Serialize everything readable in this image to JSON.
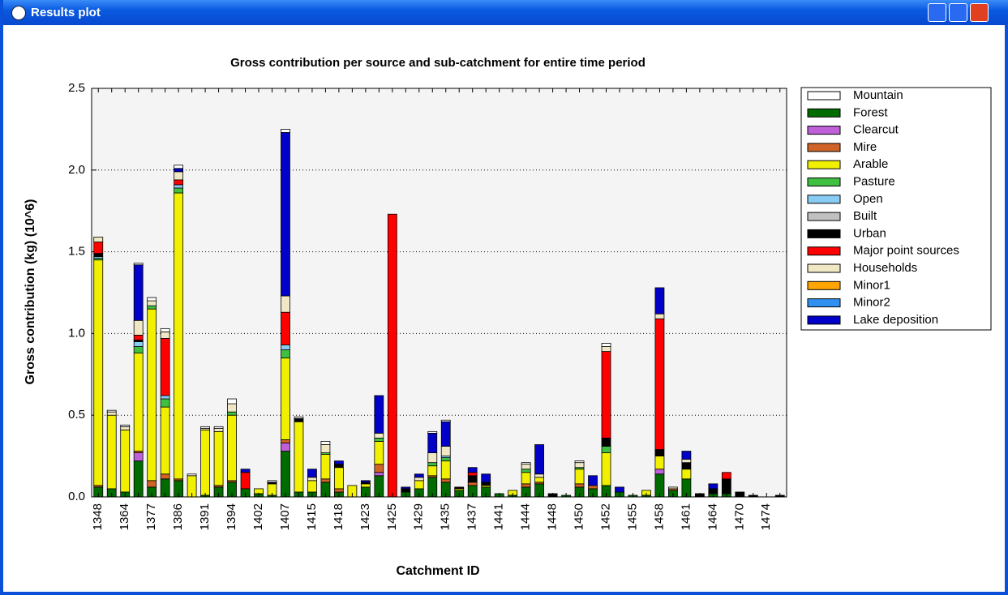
{
  "window": {
    "title": "Results plot"
  },
  "chart_data": {
    "type": "bar",
    "stacked": true,
    "title": "Gross contribution per source and sub-catchment for entire time period",
    "x_label": "Catchment ID",
    "y_label": "Gross contribution (kg) (10^6)",
    "categories": [
      "1348",
      null,
      "1364",
      null,
      "1377",
      null,
      "1386",
      null,
      "1391",
      null,
      "1394",
      null,
      "1402",
      null,
      "1407",
      null,
      "1415",
      null,
      "1418",
      null,
      "1423",
      null,
      "1425",
      null,
      "1429",
      null,
      "1435",
      null,
      "1437",
      null,
      "1441",
      null,
      "1444",
      null,
      "1448",
      null,
      "1450",
      null,
      "1452",
      null,
      "1455",
      null,
      "1458",
      null,
      "1461",
      null,
      "1464",
      null,
      "1470",
      null,
      "1474",
      null
    ],
    "ylim": [
      0,
      2.5
    ],
    "yticks": [
      {
        "value": 0,
        "label": "0.0"
      },
      0.5,
      {
        "value": 1,
        "label": "1.0"
      },
      1.5,
      {
        "value": 2,
        "label": "2.0"
      },
      2.5
    ],
    "grid": true,
    "legend": "right",
    "series": [
      {
        "name": "Mountain",
        "color": "#ffffff",
        "values": [
          0,
          0.01,
          0.01,
          0.01,
          0.02,
          0.02,
          0.02,
          0.01,
          0.01,
          0.01,
          0.03,
          0,
          0,
          0.01,
          0.02,
          0.01,
          0,
          0.02,
          0,
          0,
          0,
          0,
          0,
          0,
          0,
          0.01,
          0.01,
          0,
          0,
          0,
          0,
          0,
          0.01,
          0,
          0,
          0,
          0.01,
          0,
          0.02,
          0,
          0,
          0,
          0,
          0,
          0,
          0,
          0,
          0,
          0,
          0,
          0,
          0
        ]
      },
      {
        "name": "Forest",
        "color": "#006c00",
        "values": [
          0.06,
          0.05,
          0.03,
          0.22,
          0.06,
          0.11,
          0.1,
          0,
          0.01,
          0.06,
          0.09,
          0.05,
          0.02,
          0.01,
          0.28,
          0.03,
          0.03,
          0.09,
          0.03,
          0,
          0.06,
          0.13,
          0,
          0.03,
          0.05,
          0.12,
          0.09,
          0.04,
          0.07,
          0.06,
          0.02,
          0.01,
          0.06,
          0.08,
          0,
          0.01,
          0.06,
          0.05,
          0.07,
          0.03,
          0.01,
          0.01,
          0.14,
          0.04,
          0.11,
          0,
          0.02,
          0.02,
          0,
          0,
          0,
          0
        ]
      },
      {
        "name": "Clearcut",
        "color": "#c060d8",
        "values": [
          0,
          0,
          0,
          0.05,
          0,
          0,
          0,
          0,
          0,
          0,
          0,
          0,
          0,
          0,
          0.05,
          0,
          0,
          0,
          0,
          0,
          0,
          0.02,
          0,
          0,
          0,
          0,
          0,
          0,
          0,
          0,
          0,
          0,
          0,
          0,
          0,
          0,
          0,
          0,
          0,
          0,
          0,
          0,
          0.03,
          0,
          0,
          0,
          0,
          0,
          0,
          0,
          0,
          0
        ]
      },
      {
        "name": "Mire",
        "color": "#d06428",
        "values": [
          0.01,
          0,
          0,
          0.01,
          0.04,
          0.03,
          0.01,
          0,
          0,
          0.01,
          0.01,
          0,
          0,
          0,
          0.02,
          0,
          0,
          0.02,
          0.02,
          0,
          0,
          0.05,
          0,
          0,
          0,
          0.01,
          0.02,
          0,
          0.02,
          0,
          0,
          0,
          0.02,
          0.01,
          0,
          0,
          0.02,
          0.02,
          0,
          0,
          0,
          0,
          0,
          0.01,
          0,
          0,
          0,
          0,
          0,
          0,
          0,
          0
        ]
      },
      {
        "name": "Arable",
        "color": "#f0f000",
        "values": [
          1.38,
          0.45,
          0.38,
          0.6,
          1.05,
          0.41,
          1.75,
          0.13,
          0.4,
          0.33,
          0.4,
          0,
          0.03,
          0.07,
          0.5,
          0.43,
          0.07,
          0.15,
          0.13,
          0.07,
          0.02,
          0.14,
          0,
          0,
          0.05,
          0.06,
          0.11,
          0.01,
          0,
          0.01,
          0,
          0.03,
          0.07,
          0.03,
          0,
          0,
          0.09,
          0,
          0.2,
          0,
          0,
          0.03,
          0.08,
          0,
          0.06,
          0,
          0,
          0,
          0,
          0,
          0,
          0
        ]
      },
      {
        "name": "Pasture",
        "color": "#40c040",
        "values": [
          0.01,
          0,
          0,
          0.04,
          0.02,
          0.05,
          0.03,
          0,
          0,
          0,
          0.02,
          0,
          0,
          0,
          0.05,
          0,
          0,
          0.01,
          0,
          0,
          0,
          0.02,
          0,
          0,
          0,
          0.02,
          0.02,
          0,
          0,
          0,
          0,
          0,
          0.02,
          0,
          0,
          0,
          0.01,
          0,
          0.04,
          0,
          0,
          0,
          0,
          0,
          0,
          0,
          0,
          0,
          0,
          0,
          0,
          0
        ]
      },
      {
        "name": "Open",
        "color": "#88ccf4",
        "values": [
          0.01,
          0,
          0,
          0.03,
          0,
          0.02,
          0.02,
          0,
          0,
          0,
          0,
          0,
          0,
          0,
          0.03,
          0,
          0,
          0,
          0,
          0,
          0,
          0,
          0,
          0,
          0,
          0,
          0.01,
          0,
          0,
          0,
          0,
          0,
          0,
          0,
          0,
          0,
          0,
          0,
          0,
          0,
          0,
          0,
          0,
          0,
          0,
          0,
          0,
          0,
          0,
          0,
          0,
          0
        ]
      },
      {
        "name": "Built",
        "color": "#c0c0c0",
        "values": [
          0,
          0,
          0,
          0,
          0,
          0,
          0,
          0,
          0,
          0,
          0,
          0,
          0,
          0,
          0,
          0,
          0,
          0,
          0,
          0,
          0,
          0,
          0,
          0,
          0,
          0,
          0,
          0,
          0,
          0,
          0,
          0,
          0,
          0,
          0,
          0,
          0,
          0,
          0,
          0,
          0,
          0,
          0,
          0,
          0,
          0,
          0,
          0,
          0,
          0,
          0,
          0
        ]
      },
      {
        "name": "Urban",
        "color": "#000000",
        "values": [
          0.02,
          0,
          0,
          0.01,
          0,
          0,
          0,
          0,
          0,
          0,
          0,
          0,
          0,
          0.01,
          0,
          0.02,
          0,
          0,
          0.02,
          0,
          0.01,
          0,
          0,
          0.02,
          0,
          0,
          0,
          0.01,
          0.04,
          0.02,
          0,
          0,
          0,
          0,
          0.02,
          0,
          0,
          0,
          0.05,
          0,
          0,
          0,
          0.04,
          0,
          0.04,
          0.02,
          0.03,
          0.09,
          0.03,
          0.01,
          0,
          0.01
        ]
      },
      {
        "name": "Major point sources",
        "color": "#ff0000",
        "values": [
          0.07,
          0,
          0,
          0.03,
          0,
          0.35,
          0.03,
          0,
          0,
          0,
          0,
          0.1,
          0,
          0,
          0.2,
          0,
          0,
          0,
          0,
          0,
          0,
          0,
          1.73,
          0,
          0,
          0,
          0,
          0,
          0.02,
          0,
          0,
          0,
          0,
          0,
          0,
          0,
          0,
          0,
          0.53,
          0,
          0,
          0,
          0.8,
          0,
          0,
          0,
          0,
          0.04,
          0,
          0,
          0,
          0
        ]
      },
      {
        "name": "Households",
        "color": "#f0e8c4",
        "values": [
          0.03,
          0.02,
          0.02,
          0.09,
          0.03,
          0.04,
          0.05,
          0,
          0.01,
          0.02,
          0.05,
          0,
          0,
          0,
          0.1,
          0,
          0.02,
          0.05,
          0,
          0,
          0,
          0.03,
          0,
          0,
          0.02,
          0.06,
          0.06,
          0,
          0,
          0,
          0,
          0,
          0.03,
          0.02,
          0,
          0,
          0.03,
          0,
          0.03,
          0,
          0,
          0,
          0.03,
          0.01,
          0.02,
          0,
          0,
          0,
          0,
          0,
          0,
          0
        ]
      },
      {
        "name": "Minor1",
        "color": "#ffa400",
        "values": [
          0,
          0,
          0,
          0,
          0,
          0,
          0,
          0,
          0,
          0,
          0,
          0,
          0,
          0,
          0,
          0,
          0,
          0,
          0,
          0,
          0,
          0,
          0,
          0,
          0,
          0,
          0,
          0,
          0,
          0,
          0,
          0,
          0,
          0,
          0,
          0,
          0,
          0,
          0,
          0,
          0,
          0,
          0,
          0,
          0,
          0,
          0,
          0,
          0,
          0,
          0,
          0
        ]
      },
      {
        "name": "Minor2",
        "color": "#3090f0",
        "values": [
          0,
          0,
          0,
          0,
          0,
          0,
          0,
          0,
          0,
          0,
          0,
          0,
          0,
          0,
          0,
          0,
          0,
          0,
          0,
          0,
          0,
          0,
          0,
          0,
          0,
          0,
          0,
          0,
          0,
          0,
          0,
          0,
          0,
          0,
          0,
          0,
          0,
          0,
          0,
          0,
          0,
          0,
          0,
          0,
          0,
          0,
          0,
          0,
          0,
          0,
          0,
          0
        ]
      },
      {
        "name": "Lake deposition",
        "color": "#0000c8",
        "values": [
          0,
          0,
          0,
          0.34,
          0,
          0,
          0.02,
          0,
          0,
          0,
          0,
          0.02,
          0,
          0,
          1,
          0,
          0.05,
          0,
          0.02,
          0,
          0.01,
          0.23,
          0,
          0.01,
          0.02,
          0.12,
          0.15,
          0,
          0.03,
          0.05,
          0,
          0,
          0,
          0.18,
          0,
          0,
          0,
          0.06,
          0,
          0.03,
          0,
          0,
          0.16,
          0,
          0.05,
          0,
          0.03,
          0,
          0,
          0,
          0,
          0
        ]
      }
    ]
  }
}
